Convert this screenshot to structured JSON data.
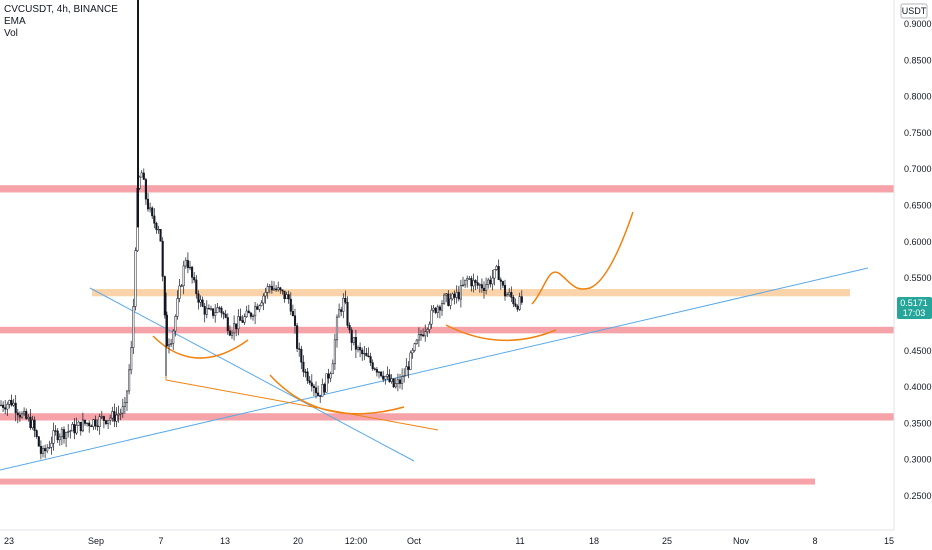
{
  "legend": {
    "symbol_line": "CVCUSDT, 4h, BINANCE",
    "indicator_1": "EMA",
    "indicator_2": "Vol"
  },
  "price_axis": {
    "currency": "USDT",
    "last_price": "0.5171",
    "countdown": "17:03",
    "ticks": [
      "0.9000",
      "0.8500",
      "0.8000",
      "0.7500",
      "0.7000",
      "0.6500",
      "0.6000",
      "0.5500",
      "0.5000",
      "0.4500",
      "0.4000",
      "0.3500",
      "0.3000",
      "0.2500"
    ]
  },
  "time_axis": {
    "ticks": [
      "23",
      "Sep",
      "7",
      "13",
      "20",
      "12:00",
      "Oct",
      "11",
      "18",
      "25",
      "Nov",
      "8",
      "15"
    ]
  },
  "colors": {
    "up": "#131722",
    "down": "#131722",
    "zone_red": "#f5a3a8",
    "zone_orange": "#fbd3ab",
    "trendline_blue": "#5aa9e6",
    "drawing_orange": "#f0820f",
    "price_badge": "#26a69a"
  },
  "chart_data": {
    "type": "candlestick",
    "symbol": "CVCUSDT",
    "interval": "4h",
    "exchange": "BINANCE",
    "y_unit": "USDT",
    "ylim": [
      0.215,
      0.93
    ],
    "x_ticks": [
      "23",
      "Sep",
      "7",
      "13",
      "20",
      "12:00",
      "Oct",
      "11",
      "18",
      "25",
      "Nov",
      "8",
      "15"
    ],
    "key_points": [
      {
        "t": "Aug 23",
        "close": 0.375
      },
      {
        "t": "Aug 25",
        "close": 0.305
      },
      {
        "t": "Sep 1",
        "close": 0.355
      },
      {
        "t": "Sep 5",
        "high": 1.05,
        "close": 0.66
      },
      {
        "t": "Sep 7",
        "low": 0.415,
        "close": 0.46
      },
      {
        "t": "Sep 13",
        "close": 0.485
      },
      {
        "t": "Sep 20",
        "close": 0.53
      },
      {
        "t": "Sep 22",
        "low": 0.38,
        "close": 0.4
      },
      {
        "t": "Sep 24",
        "close": 0.53
      },
      {
        "t": "Sep 29",
        "low": 0.39,
        "close": 0.4
      },
      {
        "t": "Oct 1",
        "close": 0.52
      },
      {
        "t": "Oct 9",
        "high": 0.59,
        "close": 0.56
      },
      {
        "t": "Oct 11",
        "close": 0.5171
      }
    ],
    "last_price": 0.5171,
    "zones": [
      {
        "color": "red",
        "y1": 0.678,
        "y2": 0.668
      },
      {
        "color": "orange",
        "y1": 0.535,
        "y2": 0.525
      },
      {
        "color": "red",
        "y1": 0.483,
        "y2": 0.474
      },
      {
        "color": "red",
        "y1": 0.364,
        "y2": 0.354
      },
      {
        "color": "red",
        "y1": 0.274,
        "y2": 0.266
      }
    ]
  }
}
